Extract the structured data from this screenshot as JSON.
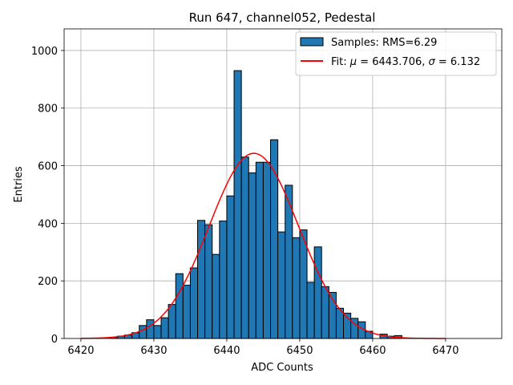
{
  "chart_data": {
    "type": "bar",
    "title": "Run 647, channel052, Pedestal",
    "xlabel": "ADC Counts",
    "ylabel": "Entries",
    "xlim": [
      6417.7,
      6477.7
    ],
    "ylim": [
      0,
      1075
    ],
    "grid": true,
    "legend_placement": "top-right",
    "xticks": [
      6420,
      6430,
      6440,
      6450,
      6460,
      6470
    ],
    "yticks": [
      0,
      200,
      400,
      600,
      800,
      1000
    ],
    "bar_color": "#1f77b4",
    "bar_edge_color": "#000000",
    "fit_color": "#ff0000",
    "series": [
      {
        "name": "Samples: RMS=6.29",
        "kind": "histogram",
        "bins": [
          {
            "x0": 6424,
            "x1": 6425,
            "value": 3
          },
          {
            "x0": 6425,
            "x1": 6426,
            "value": 8
          },
          {
            "x0": 6426,
            "x1": 6427,
            "value": 12
          },
          {
            "x0": 6427,
            "x1": 6428,
            "value": 20
          },
          {
            "x0": 6428,
            "x1": 6429,
            "value": 45
          },
          {
            "x0": 6429,
            "x1": 6430,
            "value": 65
          },
          {
            "x0": 6430,
            "x1": 6431,
            "value": 45
          },
          {
            "x0": 6431,
            "x1": 6432,
            "value": 72
          },
          {
            "x0": 6432,
            "x1": 6433,
            "value": 118
          },
          {
            "x0": 6433,
            "x1": 6434,
            "value": 225
          },
          {
            "x0": 6434,
            "x1": 6435,
            "value": 185
          },
          {
            "x0": 6435,
            "x1": 6436,
            "value": 245
          },
          {
            "x0": 6436,
            "x1": 6437,
            "value": 410
          },
          {
            "x0": 6437,
            "x1": 6438,
            "value": 395
          },
          {
            "x0": 6438,
            "x1": 6439,
            "value": 292
          },
          {
            "x0": 6439,
            "x1": 6440,
            "value": 408
          },
          {
            "x0": 6440,
            "x1": 6441,
            "value": 495
          },
          {
            "x0": 6441,
            "x1": 6442,
            "value": 930
          },
          {
            "x0": 6442,
            "x1": 6443,
            "value": 630
          },
          {
            "x0": 6443,
            "x1": 6444,
            "value": 575
          },
          {
            "x0": 6444,
            "x1": 6445,
            "value": 612
          },
          {
            "x0": 6445,
            "x1": 6446,
            "value": 612
          },
          {
            "x0": 6446,
            "x1": 6447,
            "value": 690
          },
          {
            "x0": 6447,
            "x1": 6448,
            "value": 370
          },
          {
            "x0": 6448,
            "x1": 6449,
            "value": 532
          },
          {
            "x0": 6449,
            "x1": 6450,
            "value": 350
          },
          {
            "x0": 6450,
            "x1": 6451,
            "value": 377
          },
          {
            "x0": 6451,
            "x1": 6452,
            "value": 195
          },
          {
            "x0": 6452,
            "x1": 6453,
            "value": 318
          },
          {
            "x0": 6453,
            "x1": 6454,
            "value": 180
          },
          {
            "x0": 6454,
            "x1": 6455,
            "value": 160
          },
          {
            "x0": 6455,
            "x1": 6456,
            "value": 105
          },
          {
            "x0": 6456,
            "x1": 6457,
            "value": 88
          },
          {
            "x0": 6457,
            "x1": 6458,
            "value": 70
          },
          {
            "x0": 6458,
            "x1": 6459,
            "value": 58
          },
          {
            "x0": 6459,
            "x1": 6460,
            "value": 25
          },
          {
            "x0": 6461,
            "x1": 6462,
            "value": 15
          },
          {
            "x0": 6462,
            "x1": 6463,
            "value": 8
          },
          {
            "x0": 6463,
            "x1": 6464,
            "value": 10
          }
        ]
      },
      {
        "name": "Fit: μ = 6443.706, σ = 6.132",
        "kind": "gaussian-fit",
        "mu": 6443.706,
        "sigma": 6.132,
        "amplitude": 643,
        "x_range": [
          6420,
          6470
        ]
      }
    ],
    "legend_entries": [
      {
        "label_prefix": "Samples: RMS=6.29"
      },
      {
        "label_prefix": "Fit: ",
        "mu_symbol": "μ",
        "mu_text": " = 6443.706, ",
        "sigma_symbol": "σ",
        "sigma_text": " = 6.132"
      }
    ]
  }
}
